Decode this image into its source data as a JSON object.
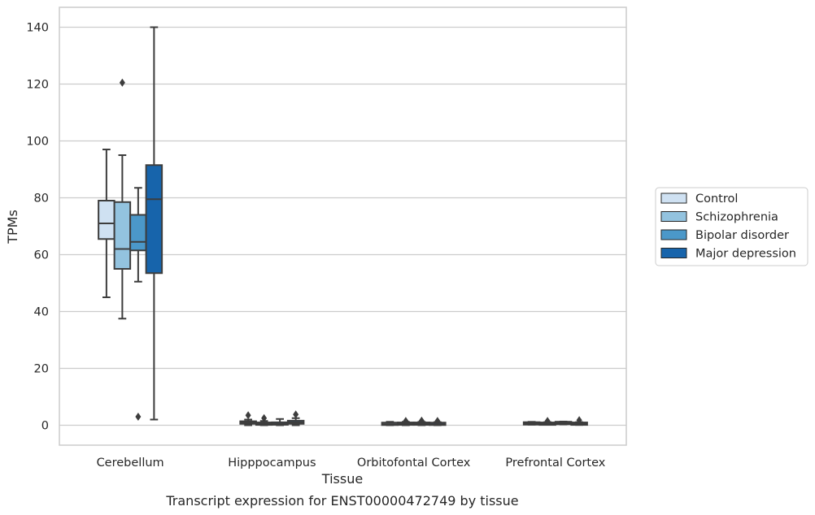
{
  "chart_data": {
    "type": "box",
    "title": "Transcript expression for ENST00000472749 by tissue",
    "xlabel": "Tissue",
    "ylabel": "TPMs",
    "ylim": [
      -7,
      147
    ],
    "yticks": [
      0,
      20,
      40,
      60,
      80,
      100,
      120,
      140
    ],
    "grid": "horizontal",
    "legend_position": "right",
    "categories": [
      "Cerebellum",
      "Hipppocampus",
      "Orbitofontal Cortex",
      "Prefrontal Cortex"
    ],
    "series": [
      {
        "name": "Control",
        "color": "#cfe1f2",
        "boxes": [
          {
            "whislo": 45,
            "q1": 65.5,
            "med": 71,
            "q3": 79,
            "whishi": 97,
            "fliers": []
          },
          {
            "whislo": 0,
            "q1": 0.5,
            "med": 0.9,
            "q3": 1.4,
            "whishi": 2,
            "fliers": [
              3.5
            ]
          },
          {
            "whislo": 0,
            "q1": 0.2,
            "med": 0.4,
            "q3": 0.8,
            "whishi": 1.2,
            "fliers": []
          },
          {
            "whislo": 0.2,
            "q1": 0.4,
            "med": 0.6,
            "q3": 0.9,
            "whishi": 1.2,
            "fliers": []
          }
        ]
      },
      {
        "name": "Schizophrenia",
        "color": "#93c3df",
        "boxes": [
          {
            "whislo": 37.5,
            "q1": 55,
            "med": 62,
            "q3": 78.5,
            "whishi": 95,
            "fliers": [
              120.5
            ]
          },
          {
            "whislo": 0,
            "q1": 0.2,
            "med": 0.5,
            "q3": 0.9,
            "whishi": 1.5,
            "fliers": [
              2.5
            ]
          },
          {
            "whislo": 0,
            "q1": 0.2,
            "med": 0.5,
            "q3": 0.9,
            "whishi": 1.2,
            "fliers": [
              1.5
            ]
          },
          {
            "whislo": 0.2,
            "q1": 0.3,
            "med": 0.5,
            "q3": 0.8,
            "whishi": 1.1,
            "fliers": [
              1.5
            ]
          }
        ]
      },
      {
        "name": "Bipolar disorder",
        "color": "#4b98c9",
        "boxes": [
          {
            "whislo": 50.5,
            "q1": 61.5,
            "med": 64.5,
            "q3": 74,
            "whishi": 83.5,
            "fliers": [
              3
            ]
          },
          {
            "whislo": 0,
            "q1": 0.2,
            "med": 0.5,
            "q3": 1.0,
            "whishi": 2.2,
            "fliers": []
          },
          {
            "whislo": 0,
            "q1": 0.2,
            "med": 0.5,
            "q3": 0.9,
            "whishi": 1.2,
            "fliers": [
              1.6
            ]
          },
          {
            "whislo": 0.3,
            "q1": 0.5,
            "med": 0.8,
            "q3": 1.1,
            "whishi": 1.3,
            "fliers": []
          }
        ]
      },
      {
        "name": "Major depression",
        "color": "#1764ab",
        "boxes": [
          {
            "whislo": 2,
            "q1": 53.5,
            "med": 79.5,
            "q3": 91.5,
            "whishi": 140,
            "fliers": []
          },
          {
            "whislo": 0,
            "q1": 0.5,
            "med": 1.0,
            "q3": 1.6,
            "whishi": 2.5,
            "fliers": [
              3.8
            ]
          },
          {
            "whislo": 0,
            "q1": 0.2,
            "med": 0.4,
            "q3": 0.8,
            "whishi": 1.1,
            "fliers": [
              1.5
            ]
          },
          {
            "whislo": 0.1,
            "q1": 0.3,
            "med": 0.5,
            "q3": 0.8,
            "whishi": 1.1,
            "fliers": [
              1.8
            ]
          }
        ]
      }
    ]
  }
}
